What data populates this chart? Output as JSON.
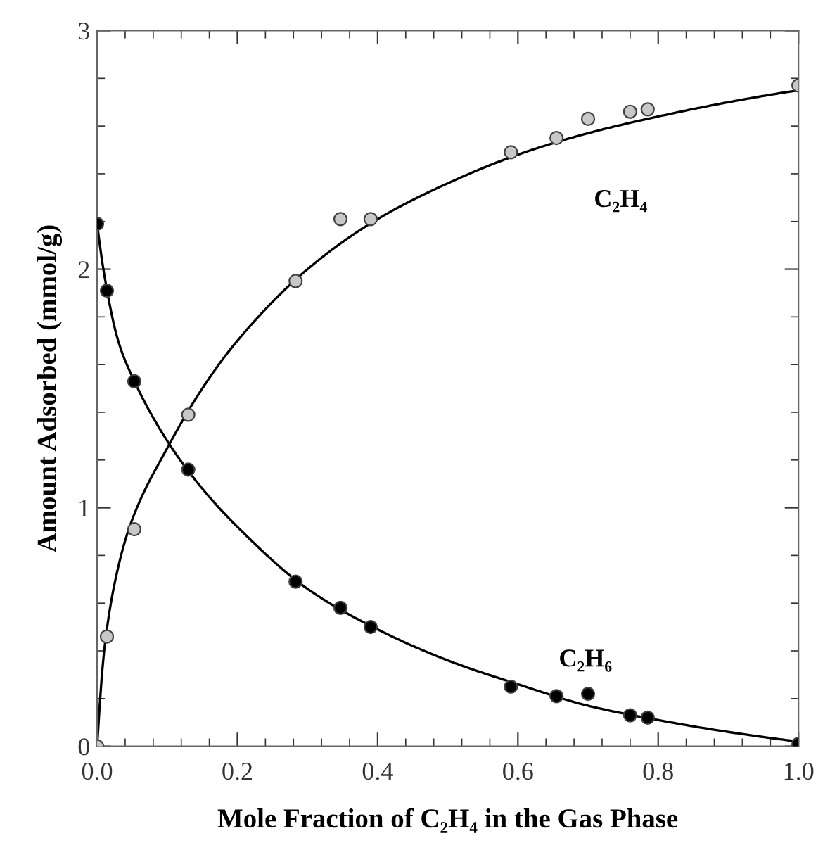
{
  "chart_data": {
    "type": "scatter",
    "xlabel": "Mole Fraction of C₂H₄ in the Gas Phase",
    "ylabel": "Amount Adsorbed (mmol/g)",
    "xlim": [
      0,
      1
    ],
    "ylim": [
      0,
      3
    ],
    "xticks": [
      {
        "value": 0,
        "label": "0.0"
      },
      {
        "value": 0.04,
        "label": null
      },
      {
        "value": 0.08,
        "label": null
      },
      {
        "value": 0.12,
        "label": null
      },
      {
        "value": 0.16,
        "label": null
      },
      {
        "value": 0.2,
        "label": "0.2"
      },
      {
        "value": 0.24,
        "label": null
      },
      {
        "value": 0.28,
        "label": null
      },
      {
        "value": 0.32,
        "label": null
      },
      {
        "value": 0.36,
        "label": null
      },
      {
        "value": 0.4,
        "label": "0.4"
      },
      {
        "value": 0.44,
        "label": null
      },
      {
        "value": 0.48,
        "label": null
      },
      {
        "value": 0.52,
        "label": null
      },
      {
        "value": 0.56,
        "label": null
      },
      {
        "value": 0.6,
        "label": "0.6"
      },
      {
        "value": 0.64,
        "label": null
      },
      {
        "value": 0.68,
        "label": null
      },
      {
        "value": 0.72,
        "label": null
      },
      {
        "value": 0.76,
        "label": null
      },
      {
        "value": 0.8,
        "label": "0.8"
      },
      {
        "value": 0.84,
        "label": null
      },
      {
        "value": 0.88,
        "label": null
      },
      {
        "value": 0.92,
        "label": null
      },
      {
        "value": 0.96,
        "label": null
      },
      {
        "value": 1.0,
        "label": "1.0"
      }
    ],
    "yticks": [
      0,
      {
        "value": 0.2,
        "label": null
      },
      {
        "value": 0.4,
        "label": null
      },
      {
        "value": 0.6,
        "label": null
      },
      {
        "value": 0.8,
        "label": null
      },
      1,
      {
        "value": 1.2,
        "label": null
      },
      {
        "value": 1.4,
        "label": null
      },
      {
        "value": 1.6,
        "label": null
      },
      {
        "value": 1.8,
        "label": null
      },
      2,
      {
        "value": 2.2,
        "label": null
      },
      {
        "value": 2.4,
        "label": null
      },
      {
        "value": 2.6,
        "label": null
      },
      {
        "value": 2.8,
        "label": null
      },
      3
    ],
    "grid": false,
    "series": [
      {
        "name": "C₂H₄",
        "marker": "circle",
        "color": "#c8c8c8",
        "x": [
          0,
          0.014,
          0.053,
          0.13,
          0.283,
          0.347,
          0.39,
          0.59,
          0.655,
          0.7,
          0.76,
          0.785,
          1.0
        ],
        "values": [
          0,
          0.46,
          0.91,
          1.39,
          1.95,
          2.21,
          2.21,
          2.49,
          2.55,
          2.63,
          2.66,
          2.67,
          2.77
        ]
      },
      {
        "name": "C₂H₆",
        "marker": "circle",
        "color": "#000000",
        "x": [
          0,
          0.014,
          0.053,
          0.13,
          0.283,
          0.347,
          0.39,
          0.59,
          0.655,
          0.7,
          0.76,
          0.785,
          1.0
        ],
        "values": [
          2.19,
          1.91,
          1.53,
          1.16,
          0.69,
          0.58,
          0.5,
          0.25,
          0.21,
          0.22,
          0.13,
          0.12,
          0.01
        ]
      },
      {
        "type": "line",
        "color": "#000000",
        "x": [
          0,
          0.01,
          0.03,
          0.05,
          0.1,
          0.15,
          0.2,
          0.3,
          0.4,
          0.5,
          0.6,
          0.7,
          0.8,
          0.9,
          1.0
        ],
        "values": [
          0,
          0.4,
          0.75,
          0.95,
          1.25,
          1.5,
          1.7,
          2.0,
          2.21,
          2.36,
          2.48,
          2.57,
          2.64,
          2.7,
          2.75
        ]
      },
      {
        "type": "line",
        "color": "#000000",
        "x": [
          0,
          0.01,
          0.03,
          0.05,
          0.1,
          0.15,
          0.2,
          0.3,
          0.4,
          0.5,
          0.6,
          0.7,
          0.8,
          0.9,
          1.0
        ],
        "values": [
          2.19,
          1.98,
          1.7,
          1.55,
          1.28,
          1.08,
          0.92,
          0.66,
          0.49,
          0.36,
          0.26,
          0.17,
          0.11,
          0.06,
          0.02
        ]
      }
    ]
  }
}
